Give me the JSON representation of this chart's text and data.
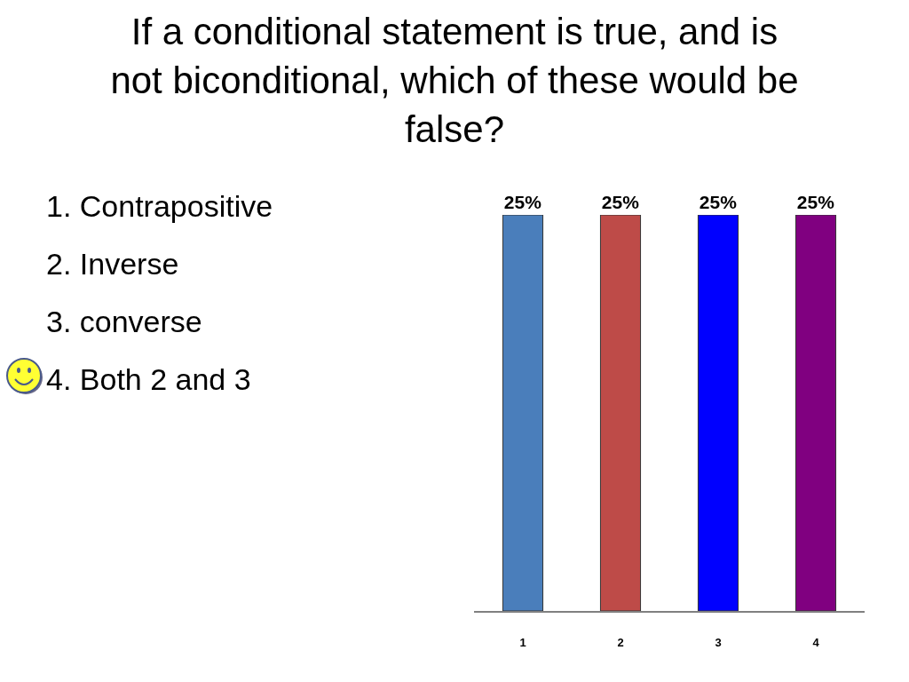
{
  "chart_data": {
    "type": "bar",
    "title": "If a conditional statement is true, and is not biconditional, which of these would be false?",
    "categories": [
      "1",
      "2",
      "3",
      "4"
    ],
    "values": [
      25,
      25,
      25,
      25
    ],
    "colors": [
      "#4a7ebb",
      "#be4b48",
      "#0000ff",
      "#800080"
    ],
    "value_labels": [
      "25%",
      "25%",
      "25%",
      "25%"
    ],
    "annotations": [
      "1. Contrapositive",
      "2. Inverse",
      "3. converse",
      "4. Both 2 and 3"
    ]
  }
}
